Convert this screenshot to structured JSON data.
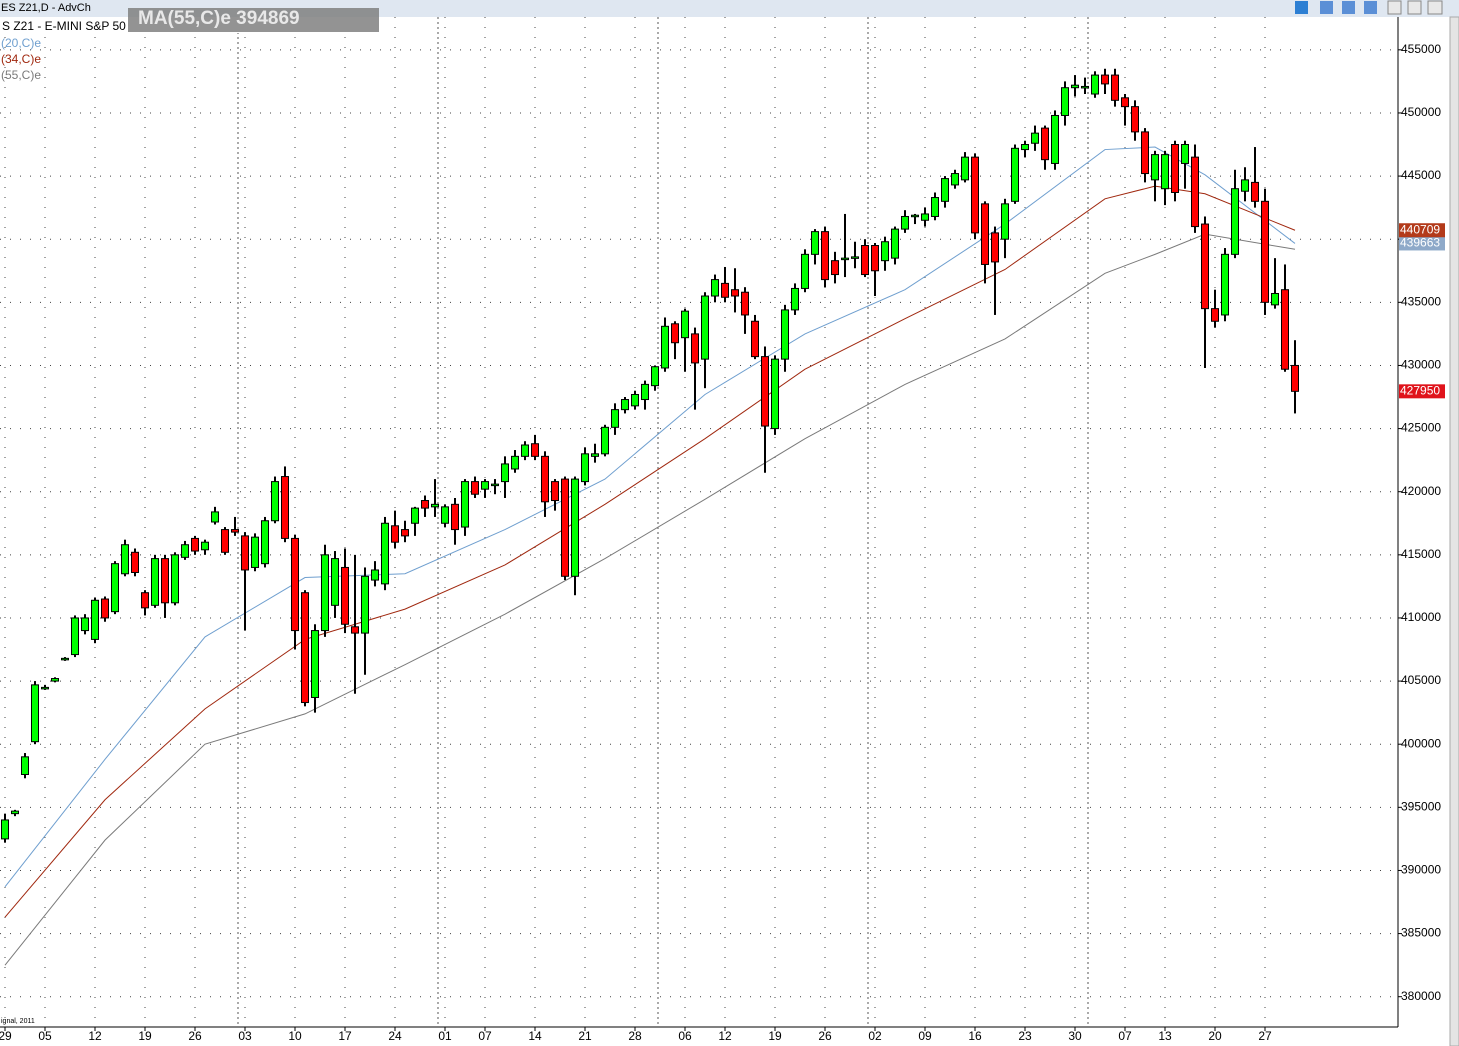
{
  "window_title": "ES Z21,D - AdvCh",
  "symbol_text": "S Z21 - E-MINI S&P 50",
  "overlay_text": "MA(55,C)e 394869",
  "footer_text": "ignal, 2011",
  "chart_data": {
    "type": "candlestick",
    "categories": [
      "29",
      null,
      null,
      null,
      "05",
      null,
      null,
      null,
      null,
      "12",
      null,
      null,
      null,
      null,
      "19",
      null,
      null,
      null,
      null,
      "26",
      null,
      null,
      null,
      null,
      "03",
      null,
      null,
      null,
      null,
      "10",
      null,
      null,
      null,
      null,
      "17",
      null,
      null,
      null,
      null,
      "24",
      null,
      null,
      null,
      null,
      "01",
      null,
      null,
      null,
      "07",
      null,
      null,
      null,
      null,
      "14",
      null,
      null,
      null,
      null,
      "21",
      null,
      null,
      null,
      null,
      "28",
      null,
      null,
      null,
      null,
      "06",
      null,
      null,
      null,
      "12",
      null,
      null,
      null,
      null,
      "19",
      null,
      null,
      null,
      null,
      "26",
      null,
      null,
      null,
      null,
      "02",
      null,
      null,
      null,
      null,
      "09",
      null,
      null,
      null,
      null,
      "16",
      null,
      null,
      null,
      null,
      "23",
      null,
      null,
      null,
      null,
      "30",
      null,
      null,
      null,
      null,
      "07",
      null,
      null,
      null,
      "13",
      null,
      null,
      null,
      null,
      "20",
      null,
      null,
      null,
      null,
      "27",
      null,
      null,
      null
    ],
    "open": [
      392500,
      394500,
      397600,
      400200,
      404500,
      405000,
      406700,
      407100,
      409000,
      408300,
      411500,
      410500,
      413500,
      415200,
      412000,
      411000,
      414700,
      411200,
      414800,
      416300,
      415400,
      417600,
      417000,
      417000,
      416500,
      414000,
      414300,
      417700,
      421200,
      416300,
      412000,
      403700,
      409000,
      411000,
      414000,
      409300,
      408800,
      413000,
      412700,
      417300,
      417000,
      417500,
      419300,
      418800,
      417500,
      419000,
      417200,
      420800,
      420200,
      420500,
      420800,
      421800,
      422800,
      423800,
      422800,
      420800,
      421000,
      413300,
      420800,
      422800,
      423000,
      425100,
      426500,
      426800,
      427300,
      428400,
      429800,
      433300,
      432200,
      432500,
      430500,
      435500,
      436500,
      436000,
      435800,
      433500,
      430700,
      425000,
      430500,
      434400,
      436100,
      438800,
      440600,
      438300,
      438500,
      438500,
      439500,
      439500,
      438300,
      438500,
      440800,
      441800,
      441500,
      441800,
      443000,
      444300,
      444700,
      446500,
      442800,
      440500,
      440000,
      443000,
      447100,
      447600,
      448800,
      446000,
      449800,
      452000,
      452000,
      451500,
      453000,
      453000,
      451200,
      450500,
      448500,
      444700,
      444000,
      447500,
      446000,
      446500,
      441200,
      434500,
      434000,
      438800,
      443800,
      444500,
      443000,
      434800,
      436000,
      430000
    ],
    "high": [
      394500,
      394800,
      399300,
      405000,
      404700,
      405300,
      406900,
      410200,
      410300,
      411600,
      411700,
      414500,
      416200,
      415500,
      412200,
      415000,
      415000,
      415200,
      416100,
      416500,
      416200,
      418800,
      417200,
      418000,
      416800,
      416700,
      418000,
      421200,
      422000,
      416600,
      412200,
      409500,
      415800,
      415300,
      415500,
      415000,
      414000,
      414500,
      418000,
      418500,
      417700,
      418800,
      419700,
      421000,
      419000,
      419500,
      421000,
      421200,
      421000,
      421000,
      422800,
      423300,
      424000,
      424500,
      423200,
      421000,
      421200,
      421200,
      423500,
      423800,
      425300,
      427000,
      427500,
      428000,
      428800,
      430000,
      433800,
      433500,
      434500,
      433000,
      435800,
      437200,
      437800,
      437700,
      436200,
      434000,
      431500,
      430800,
      434800,
      436500,
      439200,
      440800,
      441000,
      439000,
      442000,
      439800,
      440000,
      439700,
      440200,
      441000,
      442300,
      442000,
      442500,
      443700,
      445000,
      445500,
      446900,
      446800,
      443000,
      441000,
      443200,
      447500,
      447800,
      449000,
      449000,
      450200,
      452500,
      453000,
      452800,
      453300,
      453500,
      453500,
      451500,
      451000,
      448800,
      447000,
      447000,
      447800,
      447800,
      447500,
      441800,
      436000,
      439300,
      445500,
      445700,
      447300,
      444000,
      438500,
      438000,
      432000
    ],
    "low": [
      392200,
      394300,
      397300,
      400000,
      404300,
      404900,
      406600,
      406900,
      408700,
      408000,
      409700,
      410300,
      413300,
      413300,
      410200,
      410800,
      410000,
      411000,
      414600,
      415000,
      415000,
      417400,
      415000,
      416500,
      409000,
      413700,
      414000,
      417500,
      416000,
      407500,
      403000,
      402500,
      408500,
      410000,
      408800,
      404000,
      405500,
      412500,
      412200,
      415500,
      416000,
      416500,
      418000,
      418000,
      417200,
      415800,
      416500,
      419500,
      419500,
      419800,
      419500,
      421500,
      422500,
      422500,
      418000,
      418500,
      413000,
      411800,
      420500,
      422300,
      422800,
      424500,
      426200,
      426500,
      426500,
      428000,
      429500,
      430500,
      429500,
      426500,
      428200,
      435000,
      435000,
      434200,
      432500,
      430500,
      421500,
      424500,
      429500,
      434000,
      435800,
      438000,
      436200,
      436500,
      437000,
      437700,
      437000,
      435500,
      437500,
      438000,
      440500,
      441200,
      441000,
      441500,
      442500,
      444000,
      444500,
      440000,
      436500,
      434000,
      438500,
      442800,
      446500,
      447000,
      445500,
      445500,
      449000,
      451300,
      451500,
      451200,
      451500,
      450500,
      449000,
      447800,
      444500,
      443000,
      442700,
      443000,
      444000,
      440500,
      429800,
      433000,
      433500,
      438500,
      443000,
      442500,
      434000,
      434500,
      429500,
      426200
    ],
    "close": [
      394000,
      394700,
      399000,
      404700,
      404500,
      405200,
      406800,
      410000,
      410000,
      411400,
      410000,
      414300,
      415800,
      413600,
      410800,
      414700,
      411200,
      415000,
      415800,
      415300,
      416000,
      418400,
      415200,
      416800,
      413800,
      416400,
      417700,
      420800,
      416300,
      409000,
      403300,
      409000,
      415000,
      414700,
      409500,
      408800,
      413300,
      413800,
      417500,
      416000,
      416500,
      418700,
      418700,
      419000,
      418800,
      417000,
      420800,
      419800,
      420800,
      420600,
      422200,
      422800,
      423700,
      422800,
      419200,
      419300,
      413300,
      421000,
      423000,
      423000,
      425100,
      426500,
      427300,
      427700,
      428500,
      429900,
      433100,
      431800,
      434300,
      430200,
      435500,
      436800,
      435400,
      435500,
      434000,
      430700,
      425200,
      430500,
      434400,
      436100,
      438800,
      440600,
      436800,
      437200,
      438500,
      438600,
      437200,
      437500,
      439800,
      440800,
      441800,
      441900,
      442000,
      443300,
      444800,
      445200,
      446500,
      440500,
      438000,
      438200,
      442800,
      447200,
      447500,
      448400,
      446300,
      449800,
      452000,
      452200,
      452100,
      453000,
      452300,
      451000,
      450500,
      448500,
      445200,
      446700,
      446700,
      443700,
      447500,
      441000,
      434500,
      433500,
      438800,
      444000,
      444700,
      443000,
      435000,
      435700,
      429700,
      427950
    ],
    "up_color": "#00ff00",
    "down_color": "#ff0000",
    "last_close_color": "#e0131b",
    "series": [
      {
        "name": "(20,C)e",
        "color": "#6f9fcf",
        "tag_color": "#8ea9c9",
        "x": [
          0,
          10,
          20,
          30,
          40,
          50,
          60,
          70,
          80,
          90,
          100,
          110,
          115,
          120,
          129
        ],
        "values": [
          388700,
          398800,
          408500,
          413200,
          413500,
          417000,
          421000,
          427700,
          432500,
          436000,
          441200,
          447100,
          447300,
          445100,
          439663
        ]
      },
      {
        "name": "(34,C)e",
        "color": "#a0280f",
        "tag_color": "#b33a1a",
        "x": [
          0,
          10,
          20,
          30,
          40,
          50,
          60,
          70,
          80,
          90,
          100,
          110,
          115,
          120,
          129
        ],
        "values": [
          386300,
          395600,
          402800,
          408300,
          410700,
          414200,
          419000,
          424200,
          429700,
          433700,
          437600,
          443200,
          444200,
          443600,
          440709
        ]
      },
      {
        "name": "(55,C)e",
        "color": "#7a7a7a",
        "x": [
          0,
          10,
          20,
          30,
          40,
          50,
          60,
          70,
          80,
          90,
          100,
          110,
          115,
          120,
          129
        ],
        "values": [
          382500,
          392400,
          400000,
          402400,
          406300,
          410300,
          414700,
          419400,
          424200,
          428500,
          432100,
          437300,
          438800,
          440400,
          439200
        ]
      }
    ],
    "ylim": [
      377600,
      457600
    ],
    "yticks": [
      380000,
      385000,
      390000,
      395000,
      400000,
      405000,
      410000,
      415000,
      420000,
      425000,
      430000,
      435000,
      440000,
      445000,
      450000,
      455000
    ],
    "grid": true
  }
}
